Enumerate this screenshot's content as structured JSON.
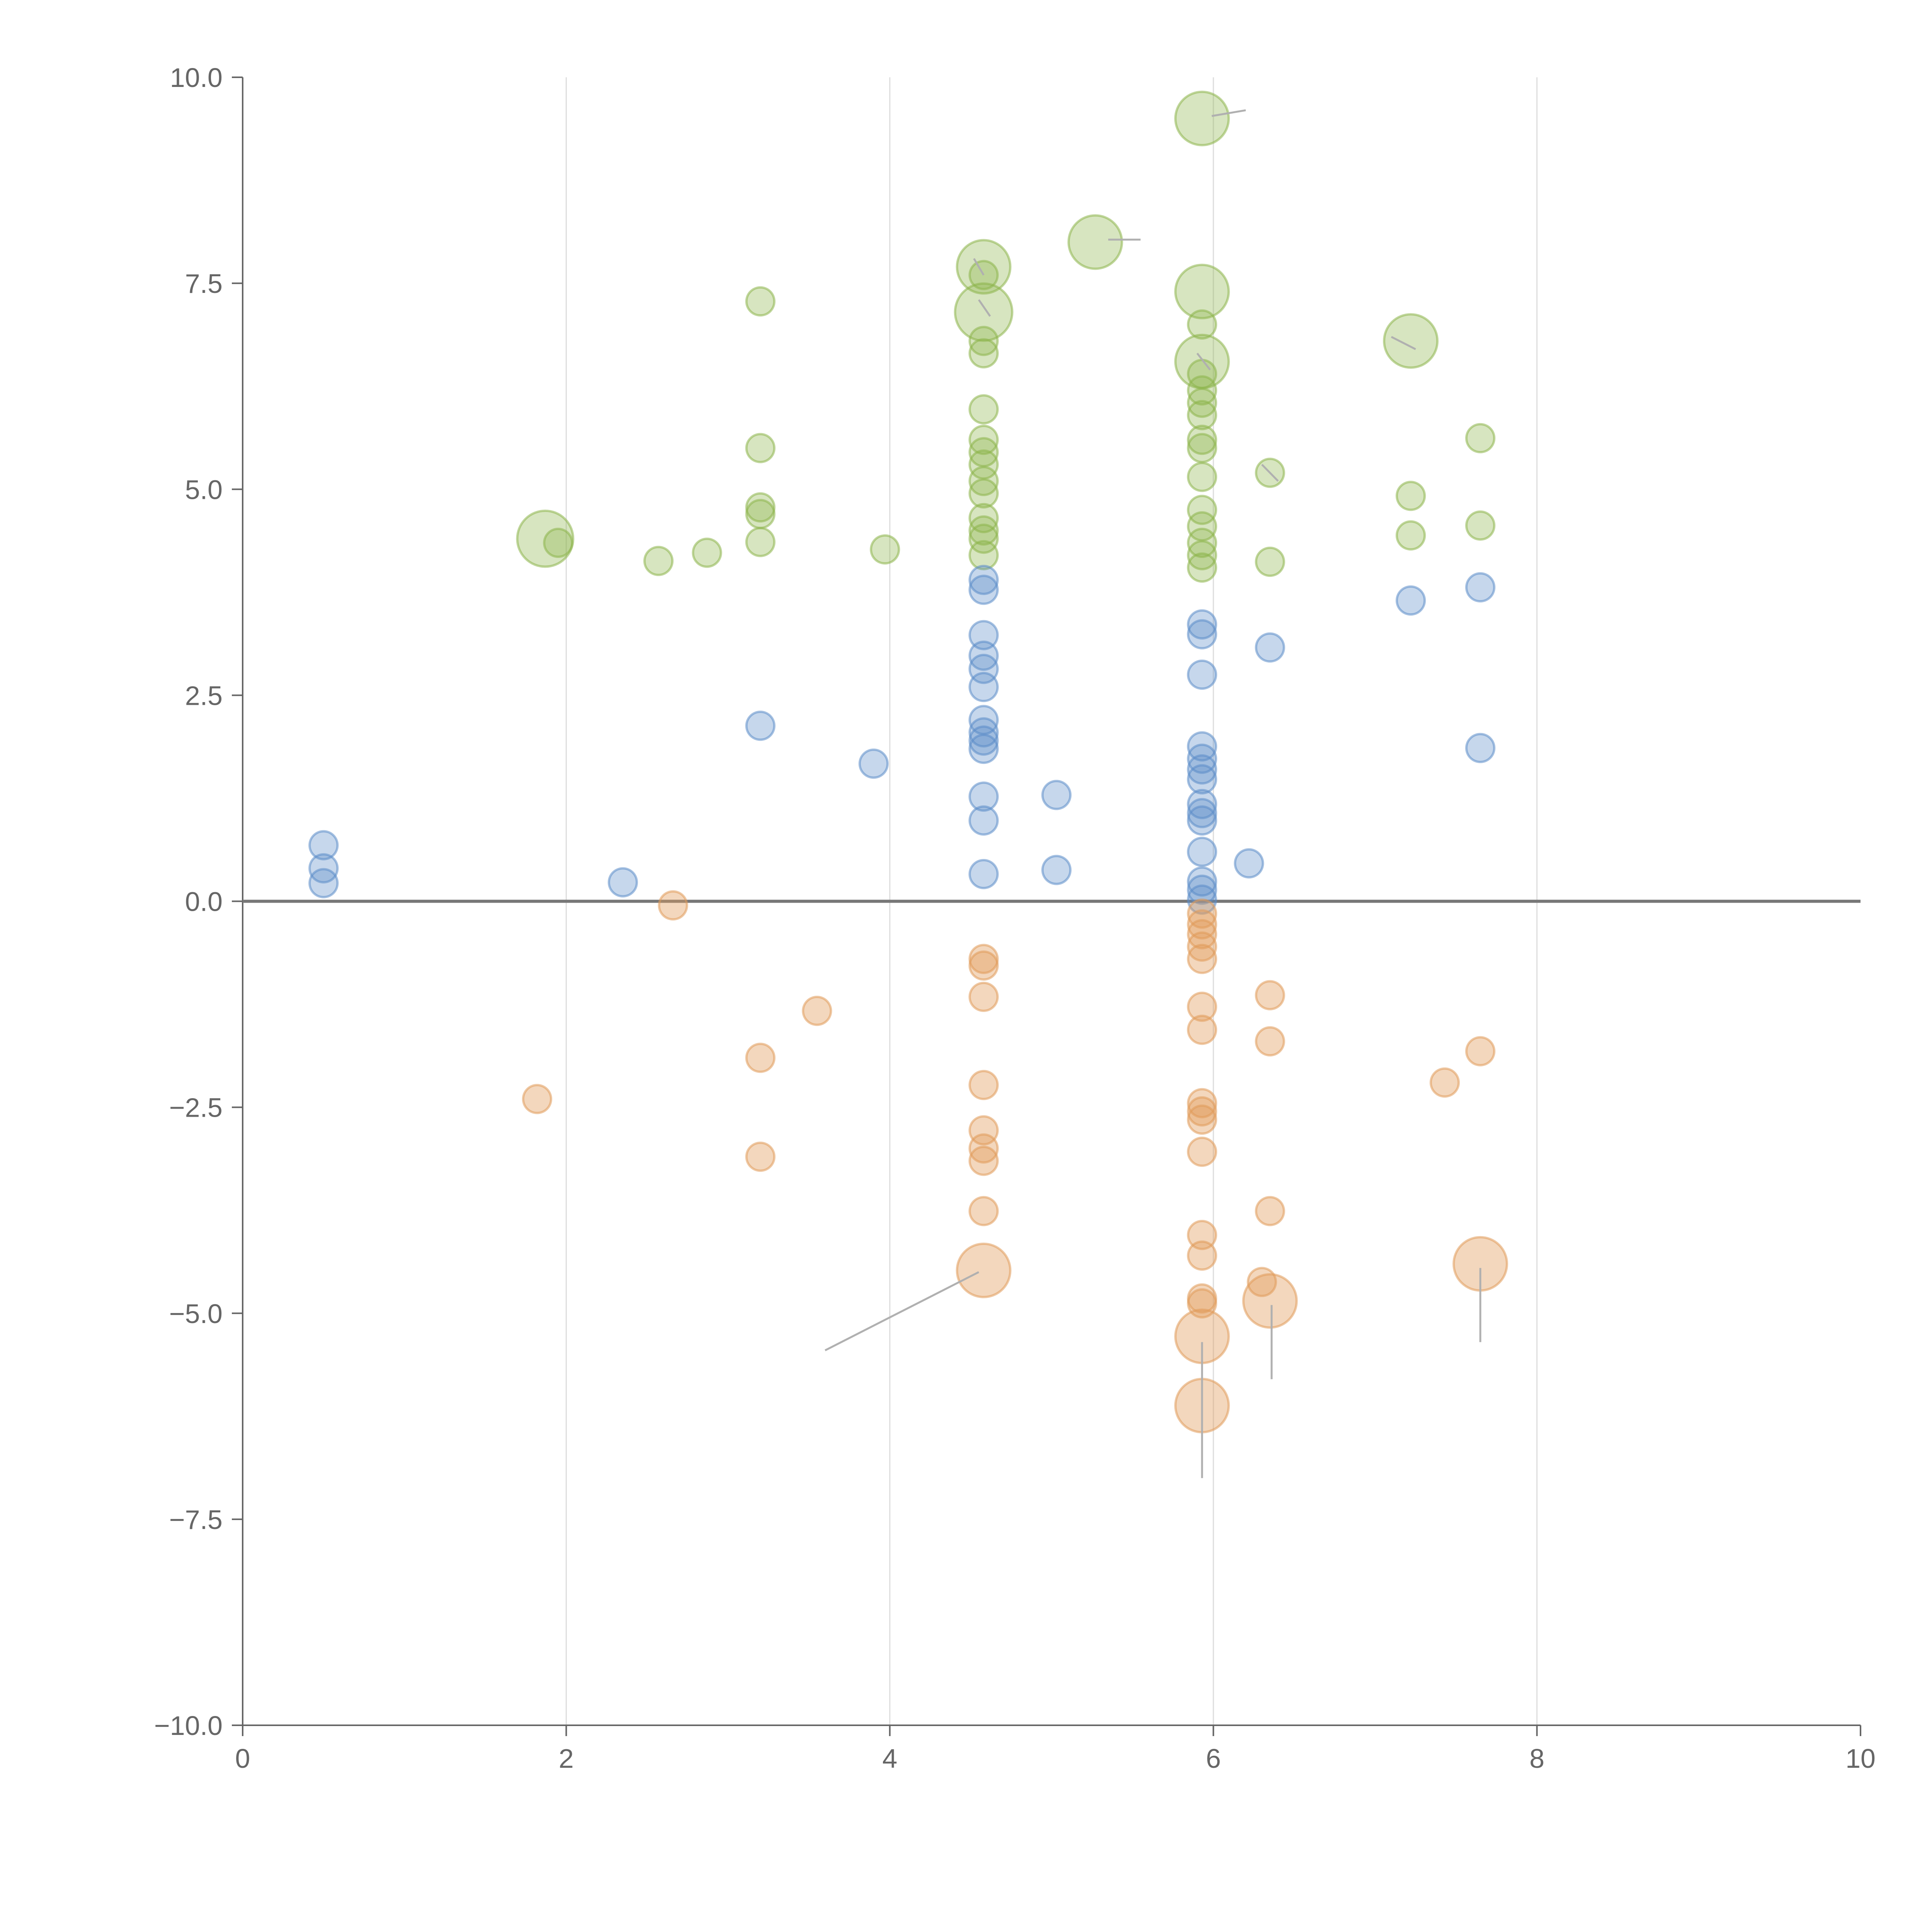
{
  "chart_data": {
    "type": "scatter",
    "variant": "bubble",
    "title": "",
    "xlabel": "",
    "ylabel": "",
    "xlim": [
      0,
      10
    ],
    "ylim": [
      -10,
      10
    ],
    "x_ticks": [
      0,
      2,
      4,
      6,
      8,
      10
    ],
    "x_tick_labels": [
      "0",
      "2",
      "4",
      "6",
      "8",
      "10"
    ],
    "y_ticks": [
      10,
      7.5,
      5,
      2.5,
      0,
      -2.5,
      -5,
      -7.5,
      -10
    ],
    "y_tick_labels": [
      "10.0",
      "7.5",
      "5.0",
      "2.5",
      "0.0",
      "−2.5",
      "−5.0",
      "−7.5",
      "−10.0"
    ],
    "vertical_grid_at": [
      2,
      4,
      6,
      8
    ],
    "horizontal_reference_line_y": 0,
    "legend": "none",
    "series": [
      {
        "name": "green",
        "color": "#8db54a",
        "fill_opacity": 0.35,
        "points": [
          [
            5.93,
            9.5,
            2
          ],
          [
            5.27,
            8.0,
            2
          ],
          [
            4.58,
            7.7,
            2
          ],
          [
            4.58,
            7.15,
            2.3
          ],
          [
            5.93,
            7.4,
            2
          ],
          [
            7.22,
            6.8,
            2
          ],
          [
            5.93,
            6.55,
            2
          ],
          [
            1.87,
            4.4,
            2.2
          ],
          [
            3.2,
            7.28,
            1
          ],
          [
            4.58,
            7.6,
            1
          ],
          [
            4.58,
            6.8,
            1
          ],
          [
            4.58,
            6.65,
            1
          ],
          [
            5.93,
            7.0,
            1
          ],
          [
            4.58,
            5.97,
            1
          ],
          [
            5.93,
            6.4,
            1
          ],
          [
            5.93,
            6.2,
            1
          ],
          [
            5.93,
            6.05,
            1
          ],
          [
            5.93,
            5.9,
            1
          ],
          [
            5.93,
            5.6,
            1
          ],
          [
            5.93,
            5.5,
            1
          ],
          [
            4.58,
            5.6,
            1
          ],
          [
            4.58,
            5.45,
            1
          ],
          [
            4.58,
            5.3,
            1
          ],
          [
            4.58,
            5.1,
            1
          ],
          [
            4.58,
            4.95,
            1
          ],
          [
            4.58,
            4.65,
            1
          ],
          [
            4.58,
            4.5,
            1
          ],
          [
            4.58,
            4.4,
            1
          ],
          [
            4.58,
            4.2,
            1
          ],
          [
            5.93,
            5.15,
            1
          ],
          [
            5.93,
            4.75,
            1
          ],
          [
            5.93,
            4.55,
            1
          ],
          [
            5.93,
            4.35,
            1
          ],
          [
            5.93,
            4.2,
            1
          ],
          [
            5.93,
            4.05,
            1
          ],
          [
            6.35,
            5.2,
            1
          ],
          [
            6.35,
            4.12,
            1
          ],
          [
            7.22,
            4.92,
            1
          ],
          [
            7.22,
            4.44,
            1
          ],
          [
            7.65,
            5.62,
            1
          ],
          [
            7.65,
            4.56,
            1
          ],
          [
            3.2,
            5.5,
            1
          ],
          [
            3.2,
            4.78,
            1
          ],
          [
            3.2,
            4.7,
            1
          ],
          [
            3.2,
            4.36,
            1
          ],
          [
            1.95,
            4.35,
            1
          ],
          [
            2.57,
            4.13,
            1
          ],
          [
            2.87,
            4.23,
            1
          ],
          [
            3.97,
            4.27,
            1
          ]
        ]
      },
      {
        "name": "blue",
        "color": "#5b8cc8",
        "fill_opacity": 0.35,
        "points": [
          [
            0.5,
            0.68,
            1
          ],
          [
            0.5,
            0.4,
            1
          ],
          [
            0.5,
            0.22,
            1
          ],
          [
            2.35,
            0.23,
            1
          ],
          [
            3.2,
            2.13,
            1
          ],
          [
            3.9,
            1.67,
            1
          ],
          [
            4.58,
            3.9,
            1
          ],
          [
            4.58,
            3.78,
            1
          ],
          [
            4.58,
            3.23,
            1
          ],
          [
            4.58,
            2.98,
            1
          ],
          [
            4.58,
            2.82,
            1
          ],
          [
            4.58,
            2.6,
            1
          ],
          [
            4.58,
            2.2,
            1
          ],
          [
            4.58,
            2.05,
            1
          ],
          [
            4.58,
            1.95,
            1
          ],
          [
            4.58,
            1.85,
            1
          ],
          [
            4.58,
            1.27,
            1
          ],
          [
            4.58,
            0.98,
            1
          ],
          [
            4.58,
            0.33,
            1
          ],
          [
            5.03,
            1.29,
            1
          ],
          [
            5.03,
            0.38,
            1
          ],
          [
            5.93,
            3.36,
            1
          ],
          [
            5.93,
            3.24,
            1
          ],
          [
            5.93,
            2.75,
            1
          ],
          [
            5.93,
            1.88,
            1
          ],
          [
            5.93,
            1.73,
            1
          ],
          [
            5.93,
            1.6,
            1
          ],
          [
            5.93,
            1.48,
            1
          ],
          [
            5.93,
            1.18,
            1
          ],
          [
            5.93,
            1.07,
            1
          ],
          [
            5.93,
            0.98,
            1
          ],
          [
            5.93,
            0.6,
            1
          ],
          [
            5.93,
            0.24,
            1
          ],
          [
            5.93,
            0.14,
            1
          ],
          [
            5.93,
            0.02,
            1
          ],
          [
            6.22,
            0.46,
            1
          ],
          [
            6.35,
            3.08,
            1
          ],
          [
            7.22,
            3.65,
            1
          ],
          [
            7.65,
            3.81,
            1
          ],
          [
            7.65,
            1.86,
            1
          ]
        ]
      },
      {
        "name": "orange",
        "color": "#e09a5a",
        "fill_opacity": 0.4,
        "points": [
          [
            4.58,
            -4.48,
            2
          ],
          [
            5.93,
            -5.28,
            2
          ],
          [
            6.35,
            -4.85,
            2
          ],
          [
            7.65,
            -4.4,
            2
          ],
          [
            5.93,
            -6.12,
            2
          ],
          [
            2.66,
            -0.05,
            1
          ],
          [
            3.55,
            -1.33,
            1
          ],
          [
            3.2,
            -1.9,
            1
          ],
          [
            3.2,
            -3.1,
            1
          ],
          [
            1.82,
            -2.4,
            1
          ],
          [
            4.58,
            -0.7,
            1
          ],
          [
            4.58,
            -0.78,
            1
          ],
          [
            4.58,
            -1.16,
            1
          ],
          [
            4.58,
            -2.23,
            1
          ],
          [
            4.58,
            -2.78,
            1
          ],
          [
            4.58,
            -3.0,
            1
          ],
          [
            4.58,
            -3.15,
            1
          ],
          [
            4.58,
            -3.76,
            1
          ],
          [
            5.93,
            -0.15,
            1
          ],
          [
            5.93,
            -0.28,
            1
          ],
          [
            5.93,
            -0.4,
            1
          ],
          [
            5.93,
            -0.55,
            1
          ],
          [
            5.93,
            -0.7,
            1
          ],
          [
            5.93,
            -1.28,
            1
          ],
          [
            5.93,
            -1.56,
            1
          ],
          [
            5.93,
            -2.45,
            1
          ],
          [
            5.93,
            -2.55,
            1
          ],
          [
            5.93,
            -2.65,
            1
          ],
          [
            5.93,
            -3.04,
            1
          ],
          [
            5.93,
            -4.05,
            1
          ],
          [
            5.93,
            -4.3,
            1
          ],
          [
            5.93,
            -4.82,
            1
          ],
          [
            5.93,
            -4.88,
            1
          ],
          [
            6.35,
            -1.14,
            1
          ],
          [
            6.35,
            -1.7,
            1
          ],
          [
            6.35,
            -3.76,
            1
          ],
          [
            6.3,
            -4.62,
            1
          ],
          [
            7.43,
            -2.2,
            1
          ],
          [
            7.65,
            -1.82,
            1
          ]
        ]
      }
    ],
    "leader_lines": [
      [
        4.55,
        -4.5,
        3.6,
        -5.45
      ],
      [
        5.93,
        -5.35,
        5.93,
        -7.0
      ],
      [
        6.36,
        -4.9,
        6.36,
        -5.8
      ],
      [
        7.65,
        -4.45,
        7.65,
        -5.35
      ],
      [
        5.99,
        9.53,
        6.2,
        9.6
      ],
      [
        5.35,
        8.03,
        5.55,
        8.03
      ],
      [
        4.58,
        7.6,
        4.52,
        7.8
      ],
      [
        4.62,
        7.1,
        4.55,
        7.3
      ],
      [
        5.98,
        6.45,
        5.9,
        6.65
      ],
      [
        7.25,
        6.7,
        7.1,
        6.85
      ],
      [
        6.4,
        5.1,
        6.3,
        5.3
      ]
    ],
    "size_unit_radius": 0.115
  }
}
